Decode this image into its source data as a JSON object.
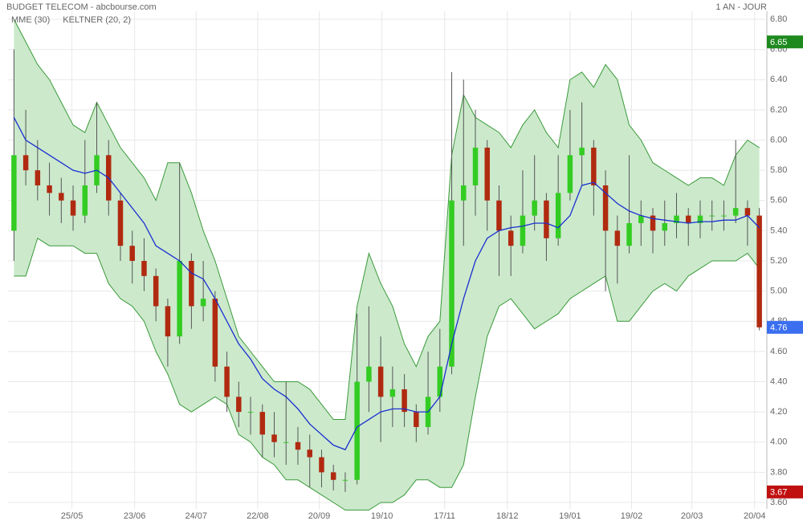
{
  "chart_data": {
    "type": "candlestick",
    "title": "BUDGET TELECOM - abcbourse.com",
    "period": "1 AN - JOUR",
    "up_color": "#33cc22",
    "down_color": "#b02a10",
    "candles": [
      [
        5.4,
        6.6,
        5.2,
        5.9
      ],
      [
        5.9,
        6.2,
        5.7,
        5.8
      ],
      [
        5.8,
        6.0,
        5.6,
        5.7
      ],
      [
        5.7,
        5.85,
        5.5,
        5.65
      ],
      [
        5.65,
        5.75,
        5.45,
        5.6
      ],
      [
        5.6,
        5.7,
        5.4,
        5.5
      ],
      [
        5.5,
        6.0,
        5.45,
        5.7
      ],
      [
        5.7,
        6.25,
        5.65,
        5.9
      ],
      [
        5.9,
        6.0,
        5.5,
        5.6
      ],
      [
        5.6,
        5.65,
        5.2,
        5.3
      ],
      [
        5.3,
        5.4,
        5.05,
        5.2
      ],
      [
        5.2,
        5.35,
        5.0,
        5.1
      ],
      [
        5.1,
        5.15,
        4.8,
        4.9
      ],
      [
        4.9,
        4.95,
        4.5,
        4.7
      ],
      [
        4.7,
        5.85,
        4.65,
        5.2
      ],
      [
        5.2,
        5.25,
        4.75,
        4.9
      ],
      [
        4.9,
        5.2,
        4.8,
        4.95
      ],
      [
        4.95,
        5.0,
        4.4,
        4.5
      ],
      [
        4.5,
        4.6,
        4.2,
        4.3
      ],
      [
        4.3,
        4.4,
        4.1,
        4.2
      ],
      [
        4.2,
        4.3,
        4.05,
        4.2
      ],
      [
        4.2,
        4.25,
        3.9,
        4.05
      ],
      [
        4.05,
        4.2,
        3.9,
        4.0
      ],
      [
        4.0,
        4.4,
        3.85,
        4.0
      ],
      [
        4.0,
        4.1,
        3.85,
        3.95
      ],
      [
        3.95,
        4.05,
        3.7,
        3.9
      ],
      [
        3.9,
        3.95,
        3.7,
        3.8
      ],
      [
        3.8,
        3.85,
        3.68,
        3.75
      ],
      [
        3.75,
        3.8,
        3.67,
        3.75
      ],
      [
        3.75,
        4.85,
        3.72,
        4.4
      ],
      [
        4.4,
        4.9,
        4.2,
        4.5
      ],
      [
        4.5,
        4.7,
        4.0,
        4.3
      ],
      [
        4.3,
        4.5,
        4.1,
        4.35
      ],
      [
        4.35,
        4.45,
        4.1,
        4.2
      ],
      [
        4.2,
        4.25,
        4.0,
        4.1
      ],
      [
        4.1,
        4.6,
        4.05,
        4.3
      ],
      [
        4.3,
        4.75,
        4.2,
        4.5
      ],
      [
        4.5,
        6.45,
        4.45,
        5.6
      ],
      [
        5.6,
        6.4,
        5.3,
        5.7
      ],
      [
        5.7,
        6.2,
        5.5,
        5.95
      ],
      [
        5.95,
        6.0,
        5.4,
        5.6
      ],
      [
        5.6,
        5.7,
        5.1,
        5.4
      ],
      [
        5.4,
        5.5,
        5.1,
        5.3
      ],
      [
        5.3,
        5.8,
        5.25,
        5.5
      ],
      [
        5.5,
        5.9,
        5.4,
        5.6
      ],
      [
        5.6,
        5.65,
        5.2,
        5.35
      ],
      [
        5.35,
        5.9,
        5.3,
        5.65
      ],
      [
        5.65,
        6.2,
        5.6,
        5.9
      ],
      [
        5.9,
        6.25,
        5.7,
        5.95
      ],
      [
        5.95,
        6.0,
        5.5,
        5.7
      ],
      [
        5.7,
        5.8,
        5.0,
        5.4
      ],
      [
        5.4,
        5.5,
        5.05,
        5.3
      ],
      [
        5.3,
        5.9,
        5.25,
        5.45
      ],
      [
        5.45,
        5.6,
        5.3,
        5.5
      ],
      [
        5.5,
        5.55,
        5.25,
        5.4
      ],
      [
        5.4,
        5.6,
        5.3,
        5.45
      ],
      [
        5.45,
        5.65,
        5.35,
        5.5
      ],
      [
        5.5,
        5.55,
        5.3,
        5.45
      ],
      [
        5.45,
        5.6,
        5.35,
        5.5
      ],
      [
        5.5,
        5.6,
        5.4,
        5.5
      ],
      [
        5.5,
        5.6,
        5.4,
        5.5
      ],
      [
        5.5,
        6.0,
        5.45,
        5.55
      ],
      [
        5.55,
        5.6,
        5.3,
        5.5
      ],
      [
        5.5,
        5.55,
        4.74,
        4.76
      ]
    ],
    "overlays": [
      {
        "name": "MME (30)",
        "color": "#1a2fd0",
        "values": [
          6.15,
          6.0,
          5.95,
          5.9,
          5.85,
          5.8,
          5.78,
          5.8,
          5.75,
          5.65,
          5.55,
          5.45,
          5.3,
          5.25,
          5.2,
          5.12,
          5.08,
          4.95,
          4.8,
          4.65,
          4.55,
          4.42,
          4.35,
          4.3,
          4.22,
          4.12,
          4.05,
          3.98,
          3.95,
          4.1,
          4.15,
          4.2,
          4.22,
          4.22,
          4.2,
          4.2,
          4.3,
          4.65,
          4.95,
          5.2,
          5.35,
          5.4,
          5.42,
          5.43,
          5.45,
          5.45,
          5.42,
          5.5,
          5.7,
          5.72,
          5.65,
          5.58,
          5.53,
          5.5,
          5.48,
          5.47,
          5.46,
          5.45,
          5.46,
          5.46,
          5.47,
          5.47,
          5.5,
          5.42
        ]
      }
    ],
    "keltner": {
      "name": "KELTNER (20, 2)",
      "color": "#3a9a3a",
      "fill": "#cce9cc",
      "upper": [
        6.8,
        6.65,
        6.5,
        6.4,
        6.25,
        6.1,
        6.05,
        6.25,
        6.1,
        5.95,
        5.85,
        5.75,
        5.6,
        5.85,
        5.85,
        5.65,
        5.4,
        5.2,
        4.95,
        4.7,
        4.6,
        4.5,
        4.4,
        4.4,
        4.4,
        4.35,
        4.25,
        4.15,
        4.15,
        4.9,
        5.25,
        5.05,
        4.9,
        4.65,
        4.5,
        4.7,
        4.8,
        5.9,
        6.3,
        6.15,
        6.1,
        6.05,
        5.95,
        6.1,
        6.2,
        6.05,
        5.95,
        6.4,
        6.45,
        6.35,
        6.5,
        6.4,
        6.1,
        6.0,
        5.85,
        5.8,
        5.75,
        5.7,
        5.75,
        5.75,
        5.7,
        5.9,
        6.0,
        5.95
      ],
      "lower": [
        5.1,
        5.1,
        5.35,
        5.3,
        5.3,
        5.3,
        5.25,
        5.25,
        5.05,
        4.95,
        4.9,
        4.8,
        4.6,
        4.45,
        4.25,
        4.2,
        4.25,
        4.3,
        4.25,
        4.05,
        4.0,
        3.9,
        3.85,
        3.75,
        3.75,
        3.7,
        3.65,
        3.6,
        3.55,
        3.55,
        3.55,
        3.6,
        3.6,
        3.65,
        3.75,
        3.75,
        3.7,
        3.7,
        3.85,
        4.3,
        4.7,
        4.9,
        4.95,
        4.85,
        4.75,
        4.8,
        4.85,
        4.95,
        5.0,
        5.05,
        5.1,
        4.8,
        4.8,
        4.9,
        5.0,
        5.05,
        5.0,
        5.1,
        5.15,
        5.2,
        5.2,
        5.2,
        5.25,
        5.15
      ]
    },
    "price_markers": [
      {
        "value": 6.65,
        "color": "#1e8a1e"
      },
      {
        "value": 4.76,
        "color": "#3b6ff0"
      },
      {
        "value": 3.67,
        "color": "#c01010"
      }
    ],
    "xlim": [
      -0.5,
      63.5
    ],
    "ylim": [
      3.6,
      6.8
    ],
    "xticks": [
      {
        "value": 4.9,
        "label": "25/05"
      },
      {
        "value": 10.2,
        "label": "23/06"
      },
      {
        "value": 15.4,
        "label": "24/07"
      },
      {
        "value": 20.6,
        "label": "22/08"
      },
      {
        "value": 25.8,
        "label": "20/09"
      },
      {
        "value": 31.1,
        "label": "19/10"
      },
      {
        "value": 36.4,
        "label": "17/11"
      },
      {
        "value": 41.7,
        "label": "18/12"
      },
      {
        "value": 47.0,
        "label": "19/01"
      },
      {
        "value": 52.2,
        "label": "19/02"
      },
      {
        "value": 57.3,
        "label": "20/03"
      },
      {
        "value": 62.6,
        "label": "20/04"
      }
    ],
    "yticks": [
      {
        "value": 3.6,
        "label": "3.60"
      },
      {
        "value": 3.8,
        "label": "3.80"
      },
      {
        "value": 4.0,
        "label": "4.00"
      },
      {
        "value": 4.2,
        "label": "4.20"
      },
      {
        "value": 4.4,
        "label": "4.40"
      },
      {
        "value": 4.6,
        "label": "4.60"
      },
      {
        "value": 4.8,
        "label": "4.80"
      },
      {
        "value": 5.0,
        "label": "5.00"
      },
      {
        "value": 5.2,
        "label": "5.20"
      },
      {
        "value": 5.4,
        "label": "5.40"
      },
      {
        "value": 5.6,
        "label": "5.60"
      },
      {
        "value": 5.8,
        "label": "5.80"
      },
      {
        "value": 6.0,
        "label": "6.00"
      },
      {
        "value": 6.2,
        "label": "6.20"
      },
      {
        "value": 6.4,
        "label": "6.40"
      },
      {
        "value": 6.6,
        "label": "6.60"
      },
      {
        "value": 6.8,
        "label": "6.80"
      }
    ],
    "grid": true
  }
}
